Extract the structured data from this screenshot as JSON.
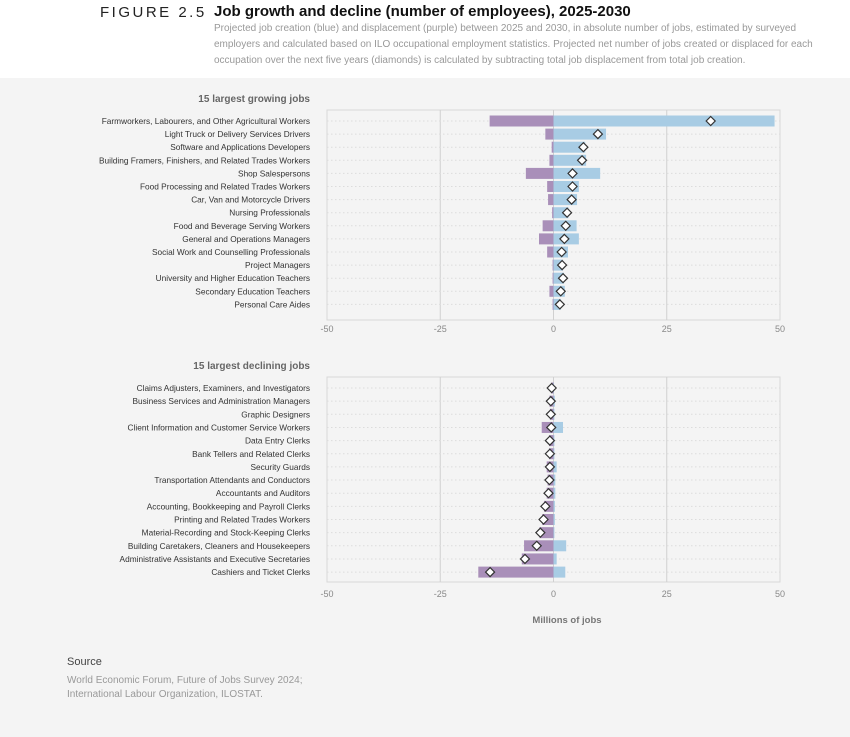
{
  "header": {
    "figure": "FIGURE 2.5",
    "title": "Job growth and decline (number of employees), 2025-2030",
    "description": "Projected job creation (blue) and displacement (purple) between 2025 and 2030, in absolute number of jobs, estimated by surveyed employers and calculated based on ILO occupational employment statistics. Projected net number of jobs created or displaced for each occupation over the next five years (diamonds) is calculated by subtracting total job displacement from total job creation."
  },
  "colors": {
    "creation": "#a8cce4",
    "displacement": "#a98fb9"
  },
  "chart_data": [
    {
      "type": "bar",
      "title": "15 largest growing jobs",
      "xlabel": "",
      "xlim": [
        -50,
        50
      ],
      "xticks": [
        "-50",
        "-25",
        "0",
        "25",
        "50"
      ],
      "grid": true,
      "categories": [
        "Farmworkers, Labourers, and Other Agricultural Workers",
        "Light Truck or Delivery Services Drivers",
        "Software and Applications Developers",
        "Building Framers, Finishers, and Related Trades Workers",
        "Shop Salespersons",
        "Food Processing and Related Trades Workers",
        "Car, Van and Motorcycle Drivers",
        "Nursing Professionals",
        "Food and Beverage Serving Workers",
        "General and Operations Managers",
        "Social Work and Counselling Professionals",
        "Project Managers",
        "University and Higher Education Teachers",
        "Secondary Education Teachers",
        "Personal Care Aides"
      ],
      "series": [
        {
          "key": "creation",
          "values": [
            48.8,
            11.6,
            7.0,
            7.2,
            10.3,
            5.6,
            5.2,
            3.3,
            5.1,
            5.6,
            3.2,
            2.1,
            2.3,
            2.5,
            1.6
          ]
        },
        {
          "key": "displacement",
          "values": [
            -14.1,
            -1.8,
            -0.4,
            -0.9,
            -6.1,
            -1.4,
            -1.2,
            -0.3,
            -2.4,
            -3.2,
            -1.4,
            -0.2,
            -0.2,
            -0.9,
            -0.2
          ]
        },
        {
          "key": "net",
          "values": [
            34.7,
            9.8,
            6.6,
            6.3,
            4.2,
            4.2,
            4.0,
            3.0,
            2.7,
            2.4,
            1.8,
            1.9,
            2.1,
            1.6,
            1.4
          ]
        }
      ]
    },
    {
      "type": "bar",
      "title": "15 largest declining jobs",
      "xlabel": "Millions of jobs",
      "xlim": [
        -50,
        50
      ],
      "xticks": [
        "-50",
        "-25",
        "0",
        "25",
        "50"
      ],
      "grid": true,
      "categories": [
        "Claims Adjusters, Examiners, and Investigators",
        "Business Services and Administration Managers",
        "Graphic Designers",
        "Client Information and Customer Service Workers",
        "Data Entry Clerks",
        "Bank Tellers and Related Clerks",
        "Security Guards",
        "Transportation Attendants and Conductors",
        "Accountants and Auditors",
        "Accounting,  Bookkeeping and Payroll Clerks",
        "Printing and Related Trades Workers",
        "Material-Recording and Stock-Keeping Clerks",
        "Building Caretakers, Cleaners and Housekeepers",
        "Administrative Assistants and Executive Secretaries",
        "Cashiers and Ticket Clerks"
      ],
      "series": [
        {
          "key": "creation",
          "values": [
            0.1,
            0.3,
            0.2,
            2.1,
            0.2,
            0.2,
            0.7,
            0.4,
            0.4,
            0.3,
            0.3,
            0.2,
            2.8,
            0.7,
            2.6
          ]
        },
        {
          "key": "displacement",
          "values": [
            -0.5,
            -0.9,
            -0.8,
            -2.6,
            -1.0,
            -1.0,
            -1.5,
            -1.3,
            -1.5,
            -2.1,
            -2.5,
            -3.1,
            -6.5,
            -7.0,
            -16.6
          ]
        },
        {
          "key": "net",
          "values": [
            -0.4,
            -0.6,
            -0.6,
            -0.5,
            -0.8,
            -0.8,
            -0.8,
            -0.9,
            -1.1,
            -1.8,
            -2.2,
            -2.9,
            -3.7,
            -6.3,
            -14.0
          ]
        }
      ]
    }
  ],
  "source": {
    "heading": "Source",
    "text": "World Economic Forum, Future of Jobs Survey 2024; International Labour Organization, ILOSTAT."
  }
}
